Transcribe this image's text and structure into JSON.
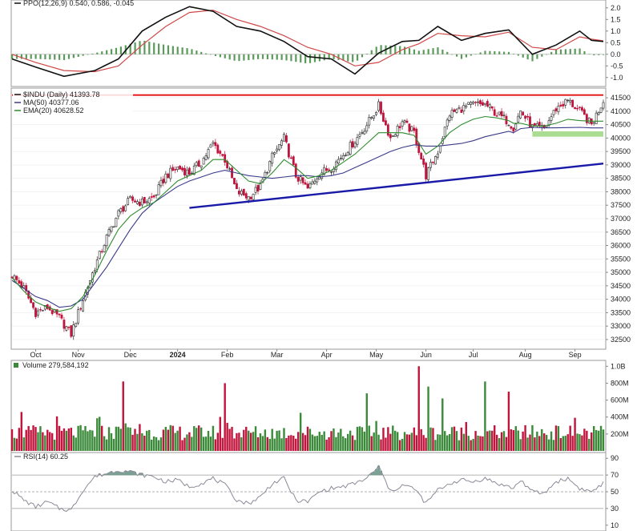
{
  "chart_data": {
    "type": "stock-chart",
    "colors": {
      "up": "#3a8a3a",
      "down": "#c0143c",
      "ma50": "#3a3a8a",
      "ema20": "#2e8b2e",
      "resistance": "#e41010",
      "trendline": "#1a1aa8",
      "support_zone": "#8ed06e",
      "ppo": "#111111",
      "ppo_signal": "#d04848",
      "histogram": "#5a9a5a",
      "rsi": "#8a8a98",
      "rsi_fill": "#5a8a7a"
    },
    "ppo": {
      "legend": "PPO(12,26,9) 0.540, 0.586, -0.045",
      "yticks": [
        "2.0",
        "1.5",
        "1.0",
        "0.5",
        "0.0",
        "-0.5",
        "-1.0"
      ],
      "ylim": [
        -1.25,
        2.2
      ],
      "x_idx": [
        0,
        10,
        22,
        35,
        45,
        55,
        65,
        75,
        85,
        95,
        105,
        115,
        125,
        135,
        145,
        155,
        165,
        172,
        180,
        190,
        200,
        210,
        220,
        230,
        240,
        245,
        250
      ],
      "ppo": [
        -0.2,
        -0.55,
        -0.95,
        -0.7,
        -0.2,
        1.0,
        1.6,
        2.05,
        1.85,
        1.2,
        1.0,
        0.55,
        -0.1,
        -0.2,
        -0.85,
        0.05,
        0.55,
        0.6,
        1.2,
        0.6,
        0.9,
        1.05,
        0.0,
        0.4,
        1.0,
        0.6,
        0.55
      ],
      "signal": [
        0.0,
        -0.35,
        -0.7,
        -0.75,
        -0.5,
        0.4,
        1.2,
        1.8,
        1.9,
        1.5,
        1.2,
        0.8,
        0.3,
        0.0,
        -0.5,
        -0.35,
        0.2,
        0.45,
        0.9,
        0.8,
        0.75,
        0.95,
        0.3,
        0.2,
        0.75,
        0.65,
        0.58
      ]
    },
    "price": {
      "legend_symbol": "$INDU (Daily) 41393.78",
      "legend_ma": "MA(50) 40377.06",
      "legend_ema": "EMA(20) 40628.52",
      "yticks": [
        "41500",
        "41000",
        "40500",
        "40000",
        "39500",
        "39000",
        "38500",
        "38000",
        "37500",
        "37000",
        "36500",
        "36000",
        "35500",
        "35000",
        "34500",
        "34000",
        "33500",
        "33000",
        "32500"
      ],
      "ylim": [
        32200,
        41800
      ],
      "resistance": 41600,
      "trendline": [
        [
          75,
          37400
        ],
        [
          250,
          39050
        ]
      ],
      "support_zone": {
        "x_start": 220,
        "x_end": 250,
        "low": 40050,
        "high": 40250
      },
      "x_idx": [
        0,
        5,
        10,
        15,
        20,
        25,
        30,
        35,
        40,
        45,
        50,
        55,
        60,
        65,
        70,
        75,
        80,
        85,
        90,
        95,
        100,
        105,
        110,
        115,
        120,
        125,
        130,
        135,
        140,
        145,
        150,
        155,
        160,
        165,
        170,
        175,
        180,
        185,
        190,
        195,
        200,
        205,
        210,
        212,
        215,
        220,
        225,
        230,
        235,
        240,
        245,
        250
      ],
      "close": [
        34900,
        34400,
        33500,
        33700,
        33300,
        32700,
        34000,
        35200,
        36300,
        37200,
        37700,
        37600,
        37800,
        38600,
        38900,
        38700,
        39100,
        39800,
        39200,
        38000,
        37800,
        38200,
        39300,
        40000,
        38600,
        38100,
        38700,
        38900,
        39400,
        39900,
        40500,
        41200,
        40000,
        40600,
        40200,
        38600,
        39500,
        40900,
        41100,
        41250,
        41250,
        40900,
        40600,
        40400,
        41000,
        40400,
        40350,
        41100,
        41400,
        41000,
        40500,
        41400
      ],
      "ma50": [
        34700,
        34400,
        34100,
        33950,
        33700,
        33750,
        34000,
        34600,
        35200,
        35900,
        36600,
        37200,
        37600,
        37900,
        38200,
        38400,
        38550,
        38700,
        38800,
        38700,
        38600,
        38550,
        38500,
        38550,
        38600,
        38600,
        38550,
        38600,
        38700,
        38900,
        39100,
        39300,
        39500,
        39650,
        39750,
        39700,
        39700,
        39750,
        39800,
        39900,
        40050,
        40150,
        40250,
        40200,
        40350,
        40400,
        40377,
        40380,
        40390,
        40400,
        40377,
        40377
      ],
      "ema20": [
        34800,
        34300,
        33900,
        33700,
        33550,
        33650,
        34100,
        34900,
        35800,
        36600,
        37100,
        37400,
        37600,
        38000,
        38400,
        38600,
        38800,
        39200,
        39200,
        38800,
        38400,
        38300,
        38700,
        39200,
        38900,
        38500,
        38600,
        38800,
        39100,
        39400,
        39800,
        40200,
        40200,
        40200,
        40100,
        39400,
        39700,
        40200,
        40500,
        40700,
        40800,
        40750,
        40650,
        40550,
        40550,
        40450,
        40450,
        40550,
        40700,
        40650,
        40628,
        40628
      ]
    },
    "volume": {
      "legend": "Volume 279,584,192",
      "yticks": [
        "1.0B",
        "800M",
        "600M",
        "400M",
        "200M"
      ],
      "ylim": [
        0,
        1050
      ],
      "baseline": 180,
      "spikes": [
        [
          4,
          460
        ],
        [
          47,
          820
        ],
        [
          90,
          800
        ],
        [
          122,
          450
        ],
        [
          150,
          680
        ],
        [
          172,
          1000
        ],
        [
          176,
          760
        ],
        [
          182,
          620
        ],
        [
          200,
          820
        ],
        [
          210,
          700
        ]
      ]
    },
    "rsi": {
      "legend": "RSI(14) 60.25",
      "yticks": [
        "90",
        "70",
        "50",
        "30",
        "10"
      ],
      "ylim": [
        5,
        95
      ],
      "x_idx": [
        0,
        5,
        10,
        15,
        20,
        25,
        30,
        35,
        40,
        45,
        50,
        55,
        60,
        65,
        70,
        75,
        80,
        85,
        90,
        95,
        100,
        105,
        110,
        115,
        120,
        125,
        130,
        135,
        140,
        145,
        150,
        155,
        160,
        165,
        170,
        175,
        180,
        185,
        190,
        195,
        200,
        205,
        210,
        212,
        215,
        220,
        225,
        230,
        235,
        240,
        245,
        250
      ],
      "rsi": [
        52,
        40,
        32,
        38,
        30,
        28,
        52,
        68,
        72,
        76,
        74,
        70,
        68,
        62,
        64,
        56,
        60,
        66,
        58,
        40,
        36,
        44,
        60,
        66,
        40,
        38,
        50,
        54,
        56,
        60,
        66,
        80,
        50,
        58,
        54,
        36,
        52,
        60,
        64,
        62,
        66,
        60,
        56,
        54,
        64,
        50,
        48,
        62,
        66,
        54,
        50,
        60
      ]
    },
    "months": [
      {
        "label": "Oct",
        "idx": 10,
        "bold": false
      },
      {
        "label": "Nov",
        "idx": 28,
        "bold": false
      },
      {
        "label": "Dec",
        "idx": 50,
        "bold": false
      },
      {
        "label": "2024",
        "idx": 70,
        "bold": true
      },
      {
        "label": "Feb",
        "idx": 91,
        "bold": false
      },
      {
        "label": "Mar",
        "idx": 112,
        "bold": false
      },
      {
        "label": "Apr",
        "idx": 133,
        "bold": false
      },
      {
        "label": "May",
        "idx": 154,
        "bold": false
      },
      {
        "label": "Jun",
        "idx": 175,
        "bold": false
      },
      {
        "label": "Jul",
        "idx": 195,
        "bold": false
      },
      {
        "label": "Aug",
        "idx": 217,
        "bold": false
      },
      {
        "label": "Sep",
        "idx": 238,
        "bold": false
      }
    ]
  }
}
